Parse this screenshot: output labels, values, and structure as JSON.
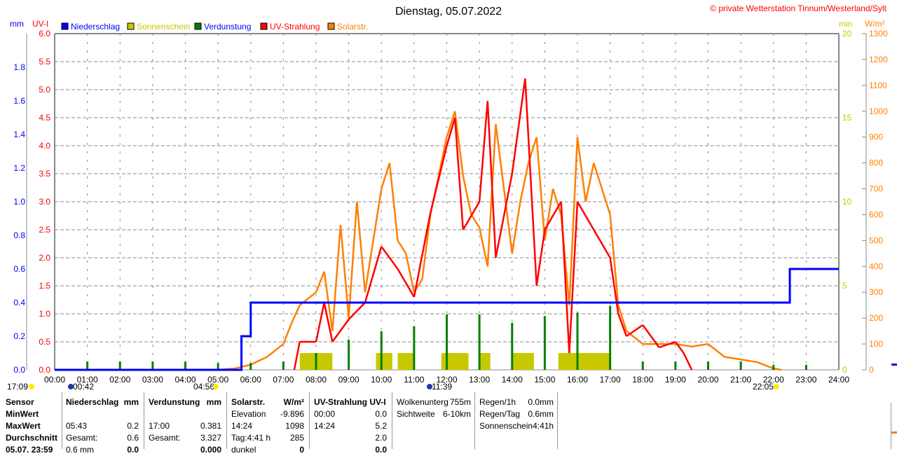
{
  "header": {
    "title": "Dienstag, 05.07.2022",
    "copyright": "© private Wetterstation Tinnum/Westerland/Sylt"
  },
  "colors": {
    "niederschlag": "#0000ff",
    "sonnenschein": "#c8c800",
    "verdunstung": "#008000",
    "uv": "#ff0000",
    "solar": "#ff8000"
  },
  "chart_data": {
    "type": "line",
    "title": "Dienstag, 05.07.2022",
    "legend": [
      "Niederschlag",
      "Sonnenschein",
      "Verdunstung",
      "UV-Strahlung",
      "Solarstr."
    ],
    "legend_placement": "top",
    "grid": true,
    "axes": {
      "mm": {
        "label": "mm",
        "range": [
          0,
          2.0
        ],
        "ticks": [
          "0.0",
          "0.2",
          "0.4",
          "0.6",
          "0.8",
          "1.0",
          "1.2",
          "1.4",
          "1.6",
          "1.8"
        ]
      },
      "uv": {
        "label": "UV-I",
        "range": [
          0,
          6.0
        ],
        "ticks": [
          "0.0",
          "0.5",
          "1.0",
          "1.5",
          "2.0",
          "2.5",
          "3.0",
          "3.5",
          "4.0",
          "4.5",
          "5.0",
          "5.5",
          "6.0"
        ]
      },
      "min": {
        "label": "min",
        "range": [
          0,
          20
        ],
        "ticks": [
          "0",
          "5",
          "10",
          "15",
          "20"
        ]
      },
      "wm2": {
        "label": "W/m²",
        "range": [
          0,
          1300
        ],
        "ticks": [
          "0",
          "100",
          "200",
          "300",
          "400",
          "500",
          "600",
          "700",
          "800",
          "900",
          "1000",
          "1100",
          "1200",
          "1300"
        ]
      },
      "x": {
        "range": [
          "00:00",
          "24:00"
        ],
        "ticks": [
          "00:00",
          "01:00",
          "02:00",
          "03:00",
          "04:00",
          "05:00",
          "06:00",
          "07:00",
          "08:00",
          "09:00",
          "10:00",
          "11:00",
          "12:00",
          "13:00",
          "14:00",
          "15:00",
          "16:00",
          "17:00",
          "18:00",
          "19:00",
          "20:00",
          "21:00",
          "22:00",
          "23:00",
          "24:00"
        ]
      }
    },
    "series": [
      {
        "name": "Niederschlag",
        "axis": "mm",
        "step": true,
        "points": [
          [
            "00:00",
            0
          ],
          [
            "05:43",
            0.2
          ],
          [
            "06:00",
            0.4
          ],
          [
            "22:30",
            0.6
          ],
          [
            "24:00",
            0.6
          ]
        ]
      },
      {
        "name": "Sonnenschein",
        "axis": "min",
        "type": "bar",
        "intervals": [
          [
            "07:30",
            "08:30",
            1
          ],
          [
            "09:50",
            "10:20",
            1
          ],
          [
            "10:30",
            "11:00",
            1
          ],
          [
            "11:50",
            "12:40",
            1
          ],
          [
            "13:00",
            "13:20",
            1
          ],
          [
            "14:00",
            "14:40",
            1
          ],
          [
            "15:25",
            "16:00",
            1
          ],
          [
            "16:00",
            "17:00",
            1
          ]
        ]
      },
      {
        "name": "Verdunstung",
        "axis": "mm",
        "type": "bar",
        "points": [
          [
            "01:00",
            0.05
          ],
          [
            "02:00",
            0.05
          ],
          [
            "03:00",
            0.05
          ],
          [
            "04:00",
            0.05
          ],
          [
            "05:00",
            0.04
          ],
          [
            "06:00",
            0.04
          ],
          [
            "07:00",
            0.05
          ],
          [
            "08:00",
            0.1
          ],
          [
            "09:00",
            0.18
          ],
          [
            "10:00",
            0.23
          ],
          [
            "11:00",
            0.26
          ],
          [
            "12:00",
            0.33
          ],
          [
            "13:00",
            0.33
          ],
          [
            "14:00",
            0.28
          ],
          [
            "15:00",
            0.32
          ],
          [
            "16:00",
            0.34
          ],
          [
            "17:00",
            0.381
          ],
          [
            "18:00",
            0.05
          ],
          [
            "19:00",
            0.05
          ],
          [
            "20:00",
            0.05
          ],
          [
            "21:00",
            0.05
          ],
          [
            "22:00",
            0.03
          ],
          [
            "23:00",
            0.03
          ]
        ]
      },
      {
        "name": "UV-Strahlung",
        "axis": "uv",
        "points": [
          [
            "07:20",
            0
          ],
          [
            "07:30",
            0.5
          ],
          [
            "08:00",
            0.5
          ],
          [
            "08:15",
            1.2
          ],
          [
            "08:30",
            0.5
          ],
          [
            "09:00",
            0.9
          ],
          [
            "09:30",
            1.2
          ],
          [
            "10:00",
            2.2
          ],
          [
            "10:30",
            1.8
          ],
          [
            "11:00",
            1.3
          ],
          [
            "11:30",
            2.8
          ],
          [
            "12:00",
            4.0
          ],
          [
            "12:15",
            4.5
          ],
          [
            "12:30",
            2.5
          ],
          [
            "13:00",
            3.0
          ],
          [
            "13:15",
            4.8
          ],
          [
            "13:30",
            2.0
          ],
          [
            "14:00",
            3.5
          ],
          [
            "14:24",
            5.2
          ],
          [
            "14:45",
            1.5
          ],
          [
            "15:00",
            2.5
          ],
          [
            "15:30",
            3.0
          ],
          [
            "15:45",
            0.3
          ],
          [
            "16:00",
            3.0
          ],
          [
            "16:30",
            2.5
          ],
          [
            "17:00",
            2.0
          ],
          [
            "17:15",
            1.0
          ],
          [
            "17:30",
            0.6
          ],
          [
            "18:00",
            0.8
          ],
          [
            "18:30",
            0.4
          ],
          [
            "19:00",
            0.5
          ],
          [
            "19:15",
            0.3
          ],
          [
            "19:30",
            0
          ]
        ]
      },
      {
        "name": "Solarstr.",
        "axis": "wm2",
        "points": [
          [
            "05:00",
            0
          ],
          [
            "05:30",
            5
          ],
          [
            "06:00",
            20
          ],
          [
            "06:30",
            50
          ],
          [
            "07:00",
            100
          ],
          [
            "07:15",
            180
          ],
          [
            "07:30",
            250
          ],
          [
            "08:00",
            300
          ],
          [
            "08:15",
            380
          ],
          [
            "08:30",
            150
          ],
          [
            "08:45",
            560
          ],
          [
            "09:00",
            200
          ],
          [
            "09:15",
            650
          ],
          [
            "09:30",
            300
          ],
          [
            "09:45",
            500
          ],
          [
            "10:00",
            700
          ],
          [
            "10:15",
            800
          ],
          [
            "10:30",
            500
          ],
          [
            "10:45",
            450
          ],
          [
            "11:00",
            300
          ],
          [
            "11:15",
            350
          ],
          [
            "11:30",
            600
          ],
          [
            "11:45",
            750
          ],
          [
            "12:00",
            900
          ],
          [
            "12:15",
            1000
          ],
          [
            "12:30",
            750
          ],
          [
            "12:45",
            600
          ],
          [
            "13:00",
            550
          ],
          [
            "13:15",
            400
          ],
          [
            "13:30",
            950
          ],
          [
            "13:45",
            700
          ],
          [
            "14:00",
            450
          ],
          [
            "14:15",
            650
          ],
          [
            "14:30",
            800
          ],
          [
            "14:45",
            900
          ],
          [
            "15:00",
            500
          ],
          [
            "15:15",
            700
          ],
          [
            "15:30",
            600
          ],
          [
            "15:45",
            250
          ],
          [
            "16:00",
            900
          ],
          [
            "16:15",
            650
          ],
          [
            "16:30",
            800
          ],
          [
            "16:45",
            700
          ],
          [
            "17:00",
            600
          ],
          [
            "17:15",
            250
          ],
          [
            "17:30",
            150
          ],
          [
            "18:00",
            100
          ],
          [
            "18:30",
            100
          ],
          [
            "19:00",
            100
          ],
          [
            "19:30",
            90
          ],
          [
            "20:00",
            100
          ],
          [
            "20:30",
            50
          ],
          [
            "21:00",
            40
          ],
          [
            "21:30",
            30
          ],
          [
            "22:00",
            5
          ],
          [
            "22:15",
            0
          ]
        ]
      }
    ],
    "events": [
      {
        "time": "17:09",
        "icon": "moonset"
      },
      {
        "time": "00:42",
        "icon": "moonrise"
      },
      {
        "time": "04:56",
        "icon": "sunrise"
      },
      {
        "time": "11:39",
        "icon": "moon-phase"
      },
      {
        "time": "22:05",
        "icon": "sunset"
      }
    ]
  },
  "table": {
    "sensor": {
      "h": "Sensor",
      "r1": "MinWert",
      "r2": "MaxWert",
      "r3": "Durchschnitt",
      "r4": "05.07. 23:59"
    },
    "nied": {
      "h": "Niederschlag",
      "u": "mm",
      "r2a": "05:43",
      "r2b": "0.2",
      "r3a": "Gesamt:",
      "r3b": "0.6",
      "r4a": "0.6 mm",
      "r4b": "0.0"
    },
    "verd": {
      "h": "Verdunstung",
      "u": "mm",
      "r2a": "17:00",
      "r2b": "0.381",
      "r3a": "Gesamt:",
      "r3b": "3.327",
      "r4b": "0.000"
    },
    "solar": {
      "h": "Solarstr.",
      "u": "W/m²",
      "r1a": "Elevation",
      "r1b": "-9.896",
      "r2a": "14:24",
      "r2b": "1098",
      "r3a": "Tag:4:41 h",
      "r3b": "285",
      "r4a": "dunkel",
      "r4b": "0"
    },
    "uv": {
      "h": "UV-Strahlung UV-I",
      "r1a": "00:00",
      "r1b": "0.0",
      "r2a": "14:24",
      "r2b": "5.2",
      "r3b": "2.0",
      "r4b": "0.0"
    },
    "wolk": {
      "r0a": "Wolkenunterg",
      "r0b": "755m",
      "r1a": "Sichtweite",
      "r1b": "6-10km"
    },
    "regen": {
      "r0a": "Regen/1h",
      "r0b": "0.0mm",
      "r1a": "Regen/Tag",
      "r1b": "0.6mm",
      "r2a": "Sonnenschein",
      "r2b": "4:41h"
    }
  }
}
